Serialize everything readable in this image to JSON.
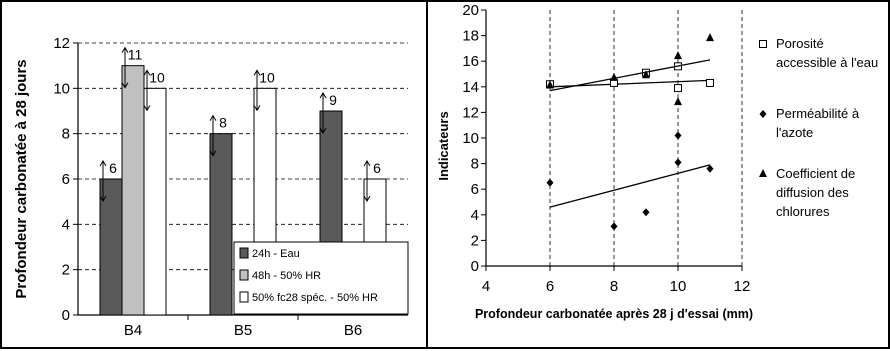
{
  "chart_data": [
    {
      "type": "bar",
      "ylabel": "Profondeur carbonatée à 28 jours",
      "xlabel": "",
      "ylim": [
        0,
        12
      ],
      "yticks": [
        0,
        2,
        4,
        6,
        8,
        10,
        12
      ],
      "grid": "dashed-horizontal",
      "categories": [
        "B4",
        "B5",
        "B6"
      ],
      "series": [
        {
          "name": "24h - Eau",
          "color": "#5a5a5a",
          "values": [
            6,
            8,
            9
          ]
        },
        {
          "name": "48h - 50% HR",
          "color": "#c0c0c0",
          "values": [
            11,
            null,
            null
          ]
        },
        {
          "name": "50% fc28 spéc. - 50% HR",
          "color": "#ffffff",
          "values": [
            10,
            10,
            6
          ]
        }
      ],
      "legend_position": "bottom-right"
    },
    {
      "type": "scatter",
      "xlabel": "Profondeur carbonatée après 28 j d'essai (mm)",
      "ylabel": "Indicateurs",
      "xlim": [
        4,
        12
      ],
      "ylim": [
        0,
        20
      ],
      "xticks": [
        4,
        6,
        8,
        10,
        12
      ],
      "yticks": [
        0,
        2,
        4,
        6,
        8,
        10,
        12,
        14,
        16,
        18,
        20
      ],
      "grid": "dashed-vertical",
      "series": [
        {
          "name": "Porosité accessible à l'eau",
          "marker": "square-open",
          "points": [
            [
              6,
              14.2
            ],
            [
              8,
              14.3
            ],
            [
              9,
              15.1
            ],
            [
              10,
              13.9
            ],
            [
              10,
              15.6
            ],
            [
              11,
              14.3
            ]
          ],
          "trend": [
            [
              6,
              14.0
            ],
            [
              11,
              14.5
            ]
          ]
        },
        {
          "name": "Perméabilité à l'azote",
          "marker": "diamond",
          "points": [
            [
              6,
              6.5
            ],
            [
              8,
              3.1
            ],
            [
              9,
              4.2
            ],
            [
              10,
              8.1
            ],
            [
              10,
              10.2
            ],
            [
              11,
              7.6
            ]
          ],
          "trend": [
            [
              6,
              4.6
            ],
            [
              11,
              7.9
            ]
          ]
        },
        {
          "name": "Coefficient de diffusion des chlorures",
          "marker": "triangle",
          "points": [
            [
              6,
              14.1
            ],
            [
              8,
              14.7
            ],
            [
              9,
              14.9
            ],
            [
              10,
              12.8
            ],
            [
              10,
              16.4
            ],
            [
              11,
              17.8
            ]
          ],
          "trend": [
            [
              6,
              13.7
            ],
            [
              11,
              16.1
            ]
          ]
        }
      ],
      "legend_position": "right"
    }
  ]
}
